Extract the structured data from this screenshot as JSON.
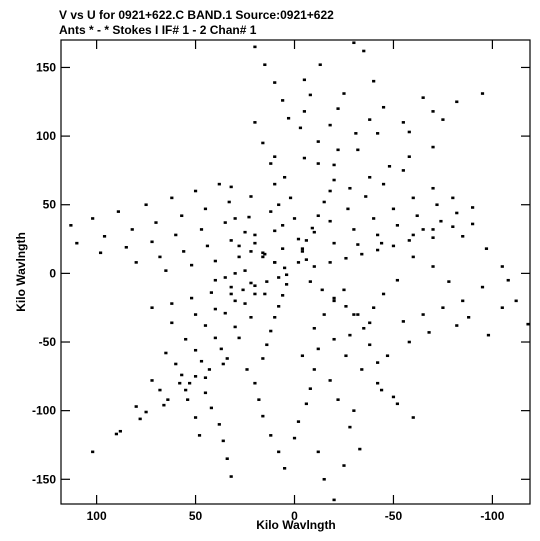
{
  "header": {
    "line1": "V vs U for 0921+622.C BAND.1   Source:0921+622",
    "line2": "Ants * - *     Stokes I  IF# 1 - 2  Chan# 1"
  },
  "chart_data": {
    "type": "scatter",
    "title": "V vs U for 0921+622.C BAND.1   Source:0921+622",
    "subtitle": "Ants * - *     Stokes I  IF# 1 - 2  Chan# 1",
    "xlabel": "Kilo Wavlngth",
    "ylabel": "Kilo Wavlngth",
    "xlim": [
      118,
      -119
    ],
    "ylim": [
      -168,
      170
    ],
    "x_reversed": true,
    "grid": false,
    "marker_color": "#000000",
    "x_ticks": [
      100,
      50,
      0,
      -50,
      -100
    ],
    "y_ticks": [
      150,
      100,
      50,
      0,
      -50,
      -100,
      -150
    ],
    "x_tick_labels": [
      "100",
      "50",
      "0",
      "-50",
      "-100"
    ],
    "y_tick_labels": [
      "150",
      "100",
      "50",
      "0",
      "-50",
      "-100",
      "-150"
    ],
    "series": [
      {
        "points": [
          [
            20,
            165
          ],
          [
            -13,
            152
          ],
          [
            -40,
            140
          ],
          [
            -65,
            128
          ],
          [
            -95,
            131
          ],
          [
            15,
            152
          ],
          [
            -5,
            141
          ],
          [
            -25,
            131
          ],
          [
            -45,
            121
          ],
          [
            -70,
            118
          ],
          [
            -82,
            125
          ],
          [
            10,
            139
          ],
          [
            -8,
            130
          ],
          [
            -22,
            120
          ],
          [
            -38,
            112
          ],
          [
            -55,
            110
          ],
          [
            -75,
            112
          ],
          [
            6,
            126
          ],
          [
            -5,
            118
          ],
          [
            -18,
            108
          ],
          [
            -31,
            102
          ],
          [
            -42,
            102
          ],
          [
            -58,
            103
          ],
          [
            3,
            113
          ],
          [
            -3,
            106
          ],
          [
            -12,
            96
          ],
          [
            -22,
            90
          ],
          [
            -32,
            90
          ],
          [
            -5,
            84
          ],
          [
            -12,
            80
          ],
          [
            -20,
            79
          ],
          [
            -35,
            162
          ],
          [
            -30,
            168
          ],
          [
            113,
            35
          ],
          [
            102,
            40
          ],
          [
            89,
            45
          ],
          [
            75,
            50
          ],
          [
            62,
            55
          ],
          [
            50,
            60
          ],
          [
            38,
            65
          ],
          [
            32,
            63
          ],
          [
            110,
            22
          ],
          [
            96,
            27
          ],
          [
            82,
            32
          ],
          [
            70,
            37
          ],
          [
            57,
            42
          ],
          [
            45,
            47
          ],
          [
            33,
            52
          ],
          [
            22,
            56
          ],
          [
            98,
            15
          ],
          [
            85,
            19
          ],
          [
            72,
            23
          ],
          [
            60,
            28
          ],
          [
            47,
            32
          ],
          [
            35,
            37
          ],
          [
            23,
            41
          ],
          [
            12,
            45
          ],
          [
            80,
            8
          ],
          [
            68,
            12
          ],
          [
            56,
            16
          ],
          [
            44,
            20
          ],
          [
            32,
            24
          ],
          [
            20,
            28
          ],
          [
            10,
            31
          ],
          [
            65,
            2
          ],
          [
            52,
            6
          ],
          [
            40,
            9
          ],
          [
            28,
            12
          ],
          [
            16,
            15
          ],
          [
            6,
            18
          ],
          [
            -10,
            30
          ],
          [
            -20,
            22
          ],
          [
            -32,
            21
          ],
          [
            -44,
            22
          ],
          [
            -58,
            24
          ],
          [
            -70,
            26
          ],
          [
            -85,
            27
          ],
          [
            -97,
            18
          ],
          [
            -105,
            5
          ],
          [
            -108,
            -5
          ],
          [
            -112,
            -20
          ],
          [
            -118,
            -37
          ],
          [
            -105,
            -25
          ],
          [
            -95,
            -10
          ],
          [
            -85,
            -20
          ],
          [
            -78,
            -6
          ],
          [
            -70,
            5
          ],
          [
            -60,
            12
          ],
          [
            -52,
            -5
          ],
          [
            -45,
            -15
          ],
          [
            -40,
            -25
          ],
          [
            -98,
            -45
          ],
          [
            -82,
            -38
          ],
          [
            -68,
            -43
          ],
          [
            -58,
            -50
          ],
          [
            -47,
            -60
          ],
          [
            -42,
            -65
          ],
          [
            -55,
            -35
          ],
          [
            -65,
            -30
          ],
          [
            -75,
            -25
          ],
          [
            -88,
            -32
          ],
          [
            -30,
            -30
          ],
          [
            -35,
            -40
          ],
          [
            -38,
            -52
          ],
          [
            -15,
            -150
          ],
          [
            -25,
            -140
          ],
          [
            -20,
            -165
          ],
          [
            -33,
            -128
          ],
          [
            -28,
            -112
          ],
          [
            -30,
            -100
          ],
          [
            -22,
            -92
          ],
          [
            -18,
            -78
          ],
          [
            -10,
            -70
          ],
          [
            -4,
            -60
          ],
          [
            -12,
            -55
          ],
          [
            -20,
            -48
          ],
          [
            -28,
            -45
          ],
          [
            5,
            -142
          ],
          [
            8,
            -130
          ],
          [
            12,
            -118
          ],
          [
            16,
            -104
          ],
          [
            18,
            -92
          ],
          [
            20,
            -80
          ],
          [
            24,
            -70
          ],
          [
            0,
            -120
          ],
          [
            -2,
            -108
          ],
          [
            -6,
            -95
          ],
          [
            -8,
            -84
          ],
          [
            -12,
            -130
          ],
          [
            32,
            -148
          ],
          [
            34,
            -135
          ],
          [
            36,
            -122
          ],
          [
            38,
            -110
          ],
          [
            42,
            -98
          ],
          [
            45,
            -87
          ],
          [
            50,
            -75
          ],
          [
            102,
            -130
          ],
          [
            90,
            -117
          ],
          [
            78,
            -106
          ],
          [
            66,
            -96
          ],
          [
            55,
            -85
          ],
          [
            45,
            -76
          ],
          [
            36,
            -66
          ],
          [
            88,
            -115
          ],
          [
            75,
            -101
          ],
          [
            64,
            -92
          ],
          [
            53,
            -80
          ],
          [
            43,
            -70
          ],
          [
            34,
            -62
          ],
          [
            80,
            -97
          ],
          [
            68,
            -85
          ],
          [
            57,
            -74
          ],
          [
            47,
            -64
          ],
          [
            37,
            -55
          ],
          [
            28,
            -47
          ],
          [
            72,
            -78
          ],
          [
            60,
            -66
          ],
          [
            50,
            -56
          ],
          [
            40,
            -47
          ],
          [
            30,
            -39
          ],
          [
            22,
            -32
          ],
          [
            65,
            -58
          ],
          [
            55,
            -48
          ],
          [
            45,
            -38
          ],
          [
            35,
            -29
          ],
          [
            25,
            -22
          ],
          [
            15,
            -15
          ],
          [
            72,
            -25
          ],
          [
            62,
            -22
          ],
          [
            52,
            -18
          ],
          [
            42,
            -14
          ],
          [
            32,
            -10
          ],
          [
            22,
            -7
          ],
          [
            62,
            -36
          ],
          [
            50,
            -30
          ],
          [
            40,
            -26
          ],
          [
            30,
            -20
          ],
          [
            20,
            -15
          ],
          [
            10,
            85
          ],
          [
            5,
            70
          ],
          [
            2,
            55
          ],
          [
            0,
            40
          ],
          [
            -2,
            25
          ],
          [
            -4,
            18
          ],
          [
            -6,
            10
          ],
          [
            20,
            110
          ],
          [
            16,
            95
          ],
          [
            12,
            80
          ],
          [
            10,
            65
          ],
          [
            8,
            50
          ],
          [
            6,
            35
          ],
          [
            30,
            40
          ],
          [
            25,
            30
          ],
          [
            20,
            22
          ],
          [
            15,
            14
          ],
          [
            10,
            8
          ],
          [
            -55,
            75
          ],
          [
            -45,
            65
          ],
          [
            -36,
            56
          ],
          [
            -27,
            47
          ],
          [
            -18,
            38
          ],
          [
            -70,
            62
          ],
          [
            -60,
            55
          ],
          [
            -50,
            47
          ],
          [
            -40,
            40
          ],
          [
            -30,
            32
          ],
          [
            -80,
            55
          ],
          [
            -72,
            50
          ],
          [
            -62,
            42
          ],
          [
            -52,
            35
          ],
          [
            -42,
            28
          ],
          [
            -90,
            48
          ],
          [
            -82,
            44
          ],
          [
            -74,
            38
          ],
          [
            -65,
            32
          ],
          [
            -70,
            92
          ],
          [
            -58,
            85
          ],
          [
            -48,
            78
          ],
          [
            -38,
            70
          ],
          [
            -28,
            62
          ],
          [
            -50,
            -90
          ],
          [
            -42,
            -80
          ],
          [
            -34,
            -70
          ],
          [
            -26,
            -60
          ],
          [
            -60,
            -105
          ],
          [
            -52,
            -95
          ],
          [
            -44,
            -85
          ],
          [
            48,
            -118
          ],
          [
            50,
            -105
          ],
          [
            54,
            -92
          ],
          [
            58,
            -80
          ],
          [
            -10,
            -40
          ],
          [
            -15,
            -30
          ],
          [
            -20,
            -20
          ],
          [
            -25,
            -12
          ],
          [
            40,
            -5
          ],
          [
            35,
            -3
          ],
          [
            30,
            0
          ],
          [
            25,
            2
          ]
        ]
      },
      {
        "points": [
          [
            32,
            -15
          ],
          [
            26,
            -12
          ],
          [
            20,
            -9
          ],
          [
            14,
            -6
          ],
          [
            8,
            -3
          ],
          [
            4,
            -1
          ],
          [
            -10,
            5
          ],
          [
            -18,
            8
          ],
          [
            -26,
            11
          ],
          [
            -34,
            14
          ],
          [
            -42,
            17
          ],
          [
            -50,
            20
          ],
          [
            -2,
            8
          ],
          [
            -4,
            16
          ],
          [
            -6,
            24
          ],
          [
            -9,
            33
          ],
          [
            -12,
            42
          ],
          [
            -15,
            52
          ],
          [
            -18,
            60
          ],
          [
            -20,
            68
          ],
          [
            4,
            -8
          ],
          [
            6,
            -16
          ],
          [
            8,
            -24
          ],
          [
            10,
            -32
          ],
          [
            12,
            -42
          ],
          [
            14,
            -52
          ],
          [
            16,
            -62
          ],
          [
            28,
            20
          ],
          [
            22,
            16
          ],
          [
            16,
            12
          ],
          [
            10,
            8
          ],
          [
            5,
            4
          ],
          [
            -8,
            -6
          ],
          [
            -14,
            -12
          ],
          [
            -20,
            -18
          ],
          [
            -26,
            -24
          ],
          [
            -32,
            -30
          ],
          [
            -38,
            -36
          ],
          [
            -60,
            28
          ],
          [
            -70,
            32
          ],
          [
            -80,
            34
          ],
          [
            -90,
            36
          ]
        ]
      }
    ]
  }
}
